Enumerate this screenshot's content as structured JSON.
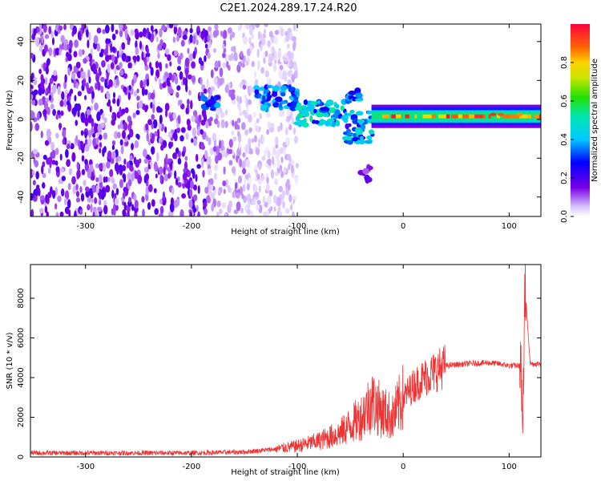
{
  "title": "C2E1.2024.289.17.24.R20",
  "chart_data": [
    {
      "type": "heatmap",
      "xlabel": "Height of straight line (km)",
      "ylabel": "Frequency (Hz)",
      "xlim": [
        -352,
        130
      ],
      "ylim": [
        -50,
        49
      ],
      "xticks": [
        -300,
        -200,
        -100,
        0,
        100
      ],
      "yticks": [
        -40,
        -20,
        0,
        20,
        40
      ],
      "colorbar": {
        "label": "Normalized spectral amplitude",
        "range": [
          0,
          1
        ],
        "ticks": [
          0.0,
          0.2,
          0.4,
          0.6,
          0.8
        ]
      },
      "features": [
        {
          "x_range": [
            -352,
            -120
          ],
          "y_range": [
            -50,
            49
          ],
          "level": 0.1
        },
        {
          "x_range": [
            -190,
            -100
          ],
          "y_center": 9,
          "level": 0.35
        },
        {
          "x_range": [
            -100,
            -30
          ],
          "y_center": 0,
          "level": 0.45
        },
        {
          "x_range": [
            -30,
            130
          ],
          "y_center": 1.5,
          "level": 0.95
        }
      ],
      "grid": false
    },
    {
      "type": "line",
      "xlabel": "Height of straight line (km)",
      "ylabel": "SNR (10 * v/v)",
      "xlim": [
        -352,
        130
      ],
      "ylim": [
        0,
        9700
      ],
      "xticks": [
        -300,
        -200,
        -100,
        0,
        100
      ],
      "yticks": [
        0,
        2000,
        4000,
        6000,
        8000
      ],
      "line_color": "#ee3333",
      "series": [
        {
          "x": [
            -352,
            -200,
            -150,
            -120,
            -100,
            -80,
            -60,
            -40,
            -30,
            -20,
            -10,
            0,
            10,
            20,
            30,
            40,
            60,
            80,
            90,
            100,
            110,
            113,
            115,
            120,
            130
          ],
          "values": [
            200,
            200,
            250,
            400,
            550,
            800,
            1200,
            2000,
            2800,
            2300,
            2000,
            3000,
            3600,
            4000,
            4300,
            4600,
            4700,
            4750,
            4700,
            4600,
            4600,
            3000,
            8500,
            4700,
            4700
          ]
        }
      ],
      "grid": false
    }
  ]
}
